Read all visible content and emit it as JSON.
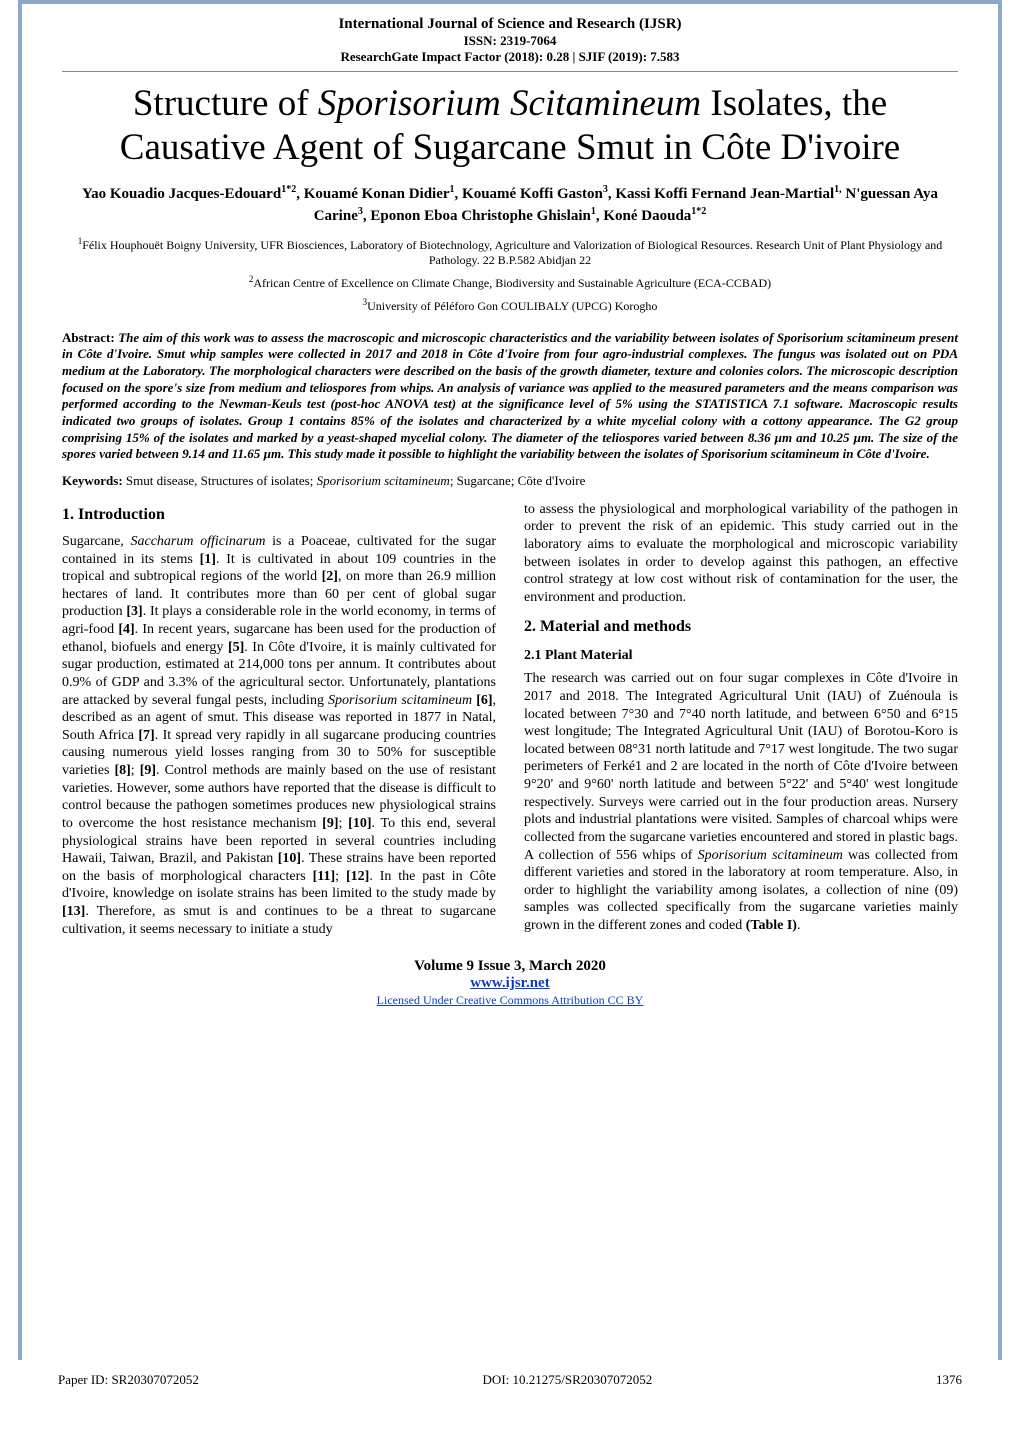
{
  "header": {
    "line1": "International Journal of Science and Research (IJSR)",
    "line2": "ISSN: 2319-7064",
    "line3": "ResearchGate Impact Factor (2018): 0.28 | SJIF (2019): 7.583"
  },
  "title": {
    "pre": "Structure of ",
    "italic": "Sporisorium Scitamineum",
    "post": " Isolates, the Causative Agent of Sugarcane Smut in Côte D'ivoire"
  },
  "authors_html": "Yao Kouadio Jacques-Edouard<sup>1*2</sup>, Kouamé Konan Didier<sup>1</sup>, Kouamé Koffi Gaston<sup>3</sup>, Kassi Koffi Fernand Jean-Martial<sup>1,</sup> N'guessan Aya Carine<sup>3</sup>, Eponon Eboa Christophe Ghislain<sup>1</sup>, Koné Daouda<sup>1*2</sup>",
  "affiliations": [
    "<sup>1</sup>Félix Houphouët Boigny University, UFR Biosciences, Laboratory of Biotechnology, Agriculture and Valorization of Biological Resources. Research Unit of Plant Physiology and Pathology. 22 B.P.582 Abidjan 22",
    "<sup>2</sup>African Centre of Excellence on Climate Change, Biodiversity and Sustainable Agriculture (ECA-CCBAD)",
    "<sup>3</sup>University of Péléforo Gon COULIBALY (UPCG) Korogho"
  ],
  "abstract": {
    "label": "Abstract:",
    "text": "The aim of this work was to assess the macroscopic and microscopic characteristics and the variability between isolates of Sporisorium scitamineum present in Côte d'Ivoire. Smut whip samples were collected in 2017 and 2018 in Côte d'Ivoire from four agro-industrial complexes. The fungus was isolated out on PDA medium at the Laboratory. The morphological characters were described on the basis of the growth diameter, texture and colonies colors. The microscopic description focused on the spore's size from medium and teliospores from whips. An analysis of variance was applied to the measured parameters and the means comparison was performed according to the Newman-Keuls test (post-hoc ANOVA test) at the significance level of 5% using the STATISTICA 7.1 software. Macroscopic results indicated two groups of isolates. Group 1 contains 85% of the isolates and characterized by a white mycelial colony with a cottony appearance. The G2 group comprising 15% of the isolates and marked by a yeast-shaped mycelial colony. The diameter of the teliospores varied between 8.36 µm and 10.25 µm. The size of the spores varied between 9.14 and 11.65 µm. This study made it possible to highlight the variability between the isolates of Sporisorium scitamineum in Côte d'Ivoire."
  },
  "keywords": {
    "label": "Keywords:",
    "text": " Smut disease, Structures of isolates; Sporisorium scitamineum; Sugarcane; Côte d'Ivoire"
  },
  "sections": {
    "intro_heading": "1. Introduction",
    "intro_para1_a": "Sugarcane, ",
    "intro_para1_ital1": "Saccharum officinarum",
    "intro_para1_b": " is a Poaceae, cultivated for the sugar contained in its stems ",
    "intro_para1_c": ". It is cultivated in about 109 countries in the tropical and subtropical regions of the world ",
    "intro_para1_d": ", on more than 26.9 million hectares of land. It contributes more than 60 per cent of global sugar production ",
    "intro_para1_e": ". It plays a considerable role in the world economy, in terms of agri-food ",
    "intro_para1_f": ". In recent years, sugarcane has been used for the production of ethanol, biofuels and energy ",
    "intro_para1_g": ". In Côte d'Ivoire, it is mainly cultivated for sugar production, estimated at 214,000 tons per annum. It contributes about 0.9% of GDP and 3.3% of the agricultural sector. Unfortunately, plantations are attacked by several fungal pests, including ",
    "intro_para1_ital2": "Sporisorium scitamineum",
    "intro_para1_h": " ",
    "intro_para1_i": ", described as an agent of smut. This disease was reported in 1877 in Natal, South Africa ",
    "intro_para1_j": ". It spread very rapidly in all sugarcane producing countries causing numerous yield losses ranging from 30 to 50% for susceptible varieties ",
    "intro_para1_k": "; ",
    "intro_para1_l": ". Control methods are mainly based on the use of resistant varieties. However, some authors have reported that the disease is difficult to control because the pathogen sometimes produces new physiological strains to overcome the host resistance mechanism ",
    "intro_para1_m": "; ",
    "intro_para1_n": ". To this end, several physiological strains have been reported in several countries including Hawaii, Taiwan, Brazil, and Pakistan ",
    "intro_para1_o": ". These strains have been reported on the basis of morphological characters ",
    "intro_para1_p": "; ",
    "intro_para1_q": ". In the past in Côte d'Ivoire, knowledge on isolate strains has been limited to the study made by ",
    "intro_para1_r": ". Therefore, as smut is and continues to be a threat to sugarcane cultivation, it seems necessary to initiate a study",
    "refs": {
      "r1": "[1]",
      "r2": "[2]",
      "r3": "[3]",
      "r4": "[4]",
      "r5": "[5]",
      "r6": "[6]",
      "r7": "[7]",
      "r8": "[8]",
      "r9": "[9]",
      "r10": "[10]",
      "r11": "[11]",
      "r12": "[12]",
      "r13": "[13]"
    },
    "intro_col2_a": "to assess the physiological and morphological variability of the pathogen in order to prevent the risk of an epidemic. This study carried out in the laboratory aims to evaluate the morphological and microscopic variability between isolates in order to develop against this pathogen, an effective control strategy at low cost without risk of contamination for the user, the environment and production.",
    "methods_heading": "2. Material and methods",
    "plantmat_heading": "2.1 Plant Material",
    "plantmat_a": "The research was carried out on four sugar complexes in Côte d'Ivoire in 2017 and 2018. The Integrated Agricultural Unit (IAU) of Zuénoula is located between 7°30 and 7°40 north latitude, and between 6°50 and 6°15 west longitude; The Integrated Agricultural Unit (IAU) of Borotou-Koro is located between 08°31 north latitude and 7°17 west longitude. The two sugar perimeters of Ferké1 and 2 are located in the north of Côte d'Ivoire between 9°20' and 9°60' north latitude and between 5°22' and 5°40' west longitude respectively. Surveys were carried out in the four production areas. Nursery plots and industrial plantations were visited. Samples of charcoal whips were collected from the sugarcane varieties encountered and stored in plastic bags. A collection of 556 whips of ",
    "plantmat_ital": "Sporisorium scitamineum",
    "plantmat_b": " was collected from different varieties and stored in the laboratory at room temperature. Also, in order to highlight the variability among isolates, a collection of nine (09) samples was collected specifically from the sugarcane varieties mainly grown in the different zones and coded ",
    "plantmat_tbl": "(Table I)",
    "plantmat_c": "."
  },
  "footer": {
    "volume": "Volume 9 Issue 3, March 2020",
    "url": "www.ijsr.net",
    "license": "Licensed Under Creative Commons Attribution CC BY"
  },
  "bottom": {
    "paper_id_label": "Paper ID: ",
    "paper_id": "SR20307072052",
    "doi_label": "DOI: ",
    "doi": "10.21275/SR20307072052",
    "page_num": "1376"
  }
}
